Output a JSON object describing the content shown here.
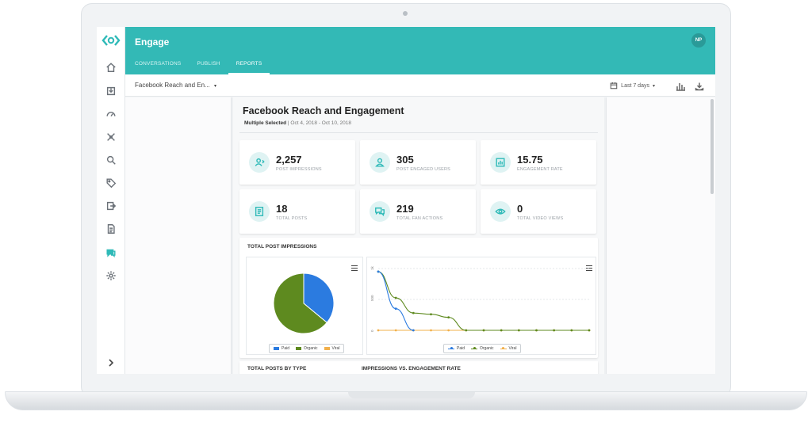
{
  "app": {
    "title": "Engage",
    "avatar_initials": "NP",
    "accent": "#33b9b6"
  },
  "tabs": [
    {
      "label": "CONVERSATIONS",
      "active": false
    },
    {
      "label": "PUBLISH",
      "active": false
    },
    {
      "label": "REPORTS",
      "active": true
    }
  ],
  "sidebar_icons": [
    "home-icon",
    "inbox-icon",
    "dashboard-icon",
    "network-icon",
    "search-icon",
    "tag-icon",
    "export-icon",
    "document-icon",
    "chat-icon",
    "settings-icon"
  ],
  "toolbar": {
    "report_select": "Facebook Reach and En...",
    "date_range": "Last 7 days",
    "icons": [
      "calendar-icon",
      "bar-chart-icon",
      "download-icon"
    ]
  },
  "report": {
    "title": "Facebook Reach and Engagement",
    "filter_label": "Multiple Selected",
    "date_span": "Oct 4, 2018 - Oct 10, 2018"
  },
  "kpis": [
    {
      "value": "2,257",
      "label": "POST IMPRESSIONS",
      "icon": "user-impressions-icon"
    },
    {
      "value": "305",
      "label": "POST ENGAGED USERS",
      "icon": "user-icon"
    },
    {
      "value": "15.75",
      "label": "ENGAGEMENT RATE",
      "icon": "chart-icon"
    },
    {
      "value": "18",
      "label": "TOTAL POSTS",
      "icon": "posts-icon"
    },
    {
      "value": "219",
      "label": "TOTAL FAN ACTIONS",
      "icon": "chat-bubbles-icon"
    },
    {
      "value": "0",
      "label": "TOTAL VIDEO VIEWS",
      "icon": "eye-icon"
    }
  ],
  "impressions_panel": {
    "title": "TOTAL POST IMPRESSIONS"
  },
  "chart_data": [
    {
      "type": "pie",
      "categories": [
        "Paid",
        "Organic",
        "Viral"
      ],
      "values": [
        36,
        64,
        0
      ],
      "colors": [
        "#2b7be0",
        "#5e8a1f",
        "#f2b04b"
      ],
      "legend": "bottom"
    },
    {
      "type": "line",
      "x": [
        1,
        2,
        3,
        4,
        5,
        6,
        7,
        8,
        9,
        10,
        11,
        12,
        13
      ],
      "series": [
        {
          "name": "Paid",
          "values": [
            1900,
            700,
            0,
            null,
            null,
            null,
            null,
            null,
            null,
            null,
            null,
            null,
            null
          ],
          "color": "#2b7be0"
        },
        {
          "name": "Organic",
          "values": [
            1900,
            1050,
            560,
            520,
            420,
            0,
            0,
            0,
            0,
            0,
            0,
            0,
            0
          ],
          "color": "#5e8a1f"
        },
        {
          "name": "Viral",
          "values": [
            0,
            0,
            0,
            0,
            0,
            0,
            0,
            0,
            0,
            0,
            0,
            0,
            0
          ],
          "color": "#f2b04b"
        }
      ],
      "yticks": [
        "1k",
        "500",
        "0"
      ],
      "ylim": [
        0,
        2000
      ],
      "grid": true,
      "legend": "bottom"
    }
  ],
  "next_panels": {
    "left_title": "TOTAL POSTS BY TYPE",
    "right_title": "IMPRESSIONS VS. ENGAGEMENT RATE"
  }
}
